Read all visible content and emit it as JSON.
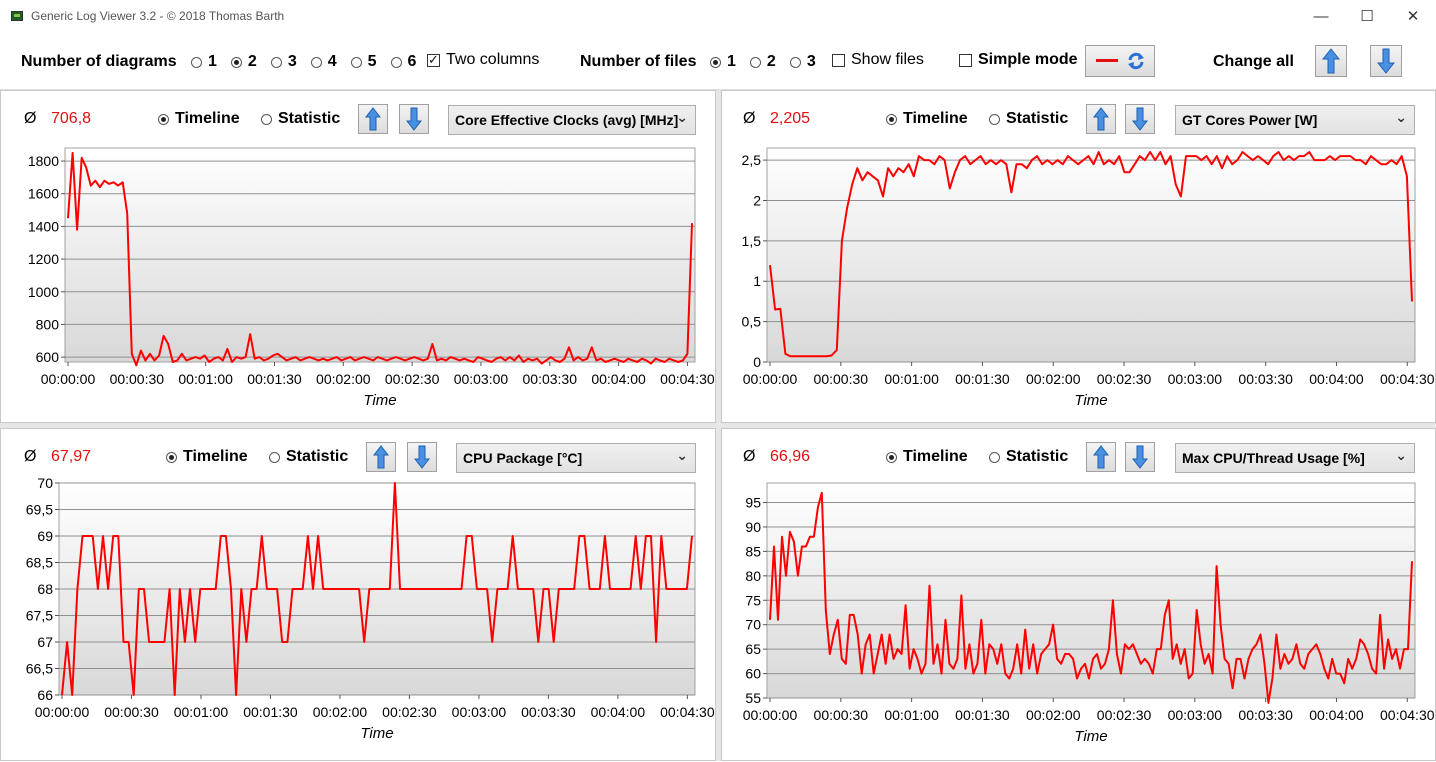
{
  "window": {
    "title": "Generic Log Viewer 3.2 - © 2018 Thomas Barth",
    "min": "—",
    "max": "☐",
    "close": "✕"
  },
  "toolbar": {
    "num_diagrams_label": "Number of diagrams",
    "diagram_options": [
      "1",
      "2",
      "3",
      "4",
      "5",
      "6"
    ],
    "diagram_selected": "2",
    "two_columns_label": "Two columns",
    "two_columns_checked": true,
    "num_files_label": "Number of files",
    "file_options": [
      "1",
      "2",
      "3"
    ],
    "file_selected": "1",
    "show_files_label": "Show files",
    "show_files_checked": false,
    "simple_mode_label": "Simple mode",
    "simple_mode_checked": false,
    "change_all_label": "Change all",
    "line_color": "#e01010"
  },
  "panels": [
    {
      "avg_symbol": "Ø",
      "avg_value": "706,8",
      "timeline_label": "Timeline",
      "statistic_label": "Statistic",
      "mode": "timeline",
      "sensor": "Core Effective Clocks (avg) [MHz]",
      "chart_data": {
        "type": "line",
        "xlabel": "Time",
        "x_ticks": [
          "00:00:00",
          "00:00:30",
          "00:01:00",
          "00:01:30",
          "00:02:00",
          "00:02:30",
          "00:03:00",
          "00:03:30",
          "00:04:00",
          "00:04:30"
        ],
        "x_range_seconds": [
          0,
          272
        ],
        "y_ticks": [
          "600",
          "800",
          "1000",
          "1200",
          "1400",
          "1600",
          "1800"
        ],
        "ylim": [
          570,
          1880
        ],
        "y_tick_values": [
          600,
          800,
          1000,
          1200,
          1400,
          1600,
          1800
        ],
        "series": [
          {
            "color": "#ff0000",
            "values": [
              1450,
              1850,
              1380,
              1820,
              1760,
              1650,
              1680,
              1640,
              1680,
              1660,
              1670,
              1650,
              1670,
              1480,
              620,
              550,
              640,
              580,
              620,
              580,
              610,
              730,
              680,
              570,
              580,
              620,
              580,
              590,
              600,
              590,
              610,
              570,
              590,
              600,
              580,
              650,
              570,
              600,
              590,
              600,
              740,
              590,
              600,
              580,
              590,
              610,
              620,
              600,
              580,
              590,
              600,
              580,
              590,
              600,
              590,
              580,
              590,
              580,
              590,
              600,
              580,
              590,
              600,
              580,
              590,
              600,
              590,
              580,
              600,
              590,
              580,
              590,
              600,
              590,
              580,
              590,
              600,
              590,
              580,
              590,
              680,
              580,
              590,
              580,
              600,
              590,
              580,
              590,
              580,
              570,
              600,
              590,
              580,
              570,
              590,
              600,
              580,
              600,
              580,
              610,
              570,
              590,
              580,
              590,
              560,
              580,
              600,
              580,
              570,
              590,
              660,
              580,
              600,
              580,
              590,
              660,
              580,
              590,
              570,
              580,
              590,
              580,
              570,
              590,
              580,
              570,
              590,
              580,
              560,
              590,
              580,
              570,
              590,
              580,
              570,
              580,
              620,
              1420
            ]
          }
        ]
      }
    },
    {
      "avg_symbol": "Ø",
      "avg_value": "2,205",
      "timeline_label": "Timeline",
      "statistic_label": "Statistic",
      "mode": "timeline",
      "sensor": "GT Cores Power [W]",
      "chart_data": {
        "type": "line",
        "xlabel": "Time",
        "x_ticks": [
          "00:00:00",
          "00:00:30",
          "00:01:00",
          "00:01:30",
          "00:02:00",
          "00:02:30",
          "00:03:00",
          "00:03:30",
          "00:04:00",
          "00:04:30"
        ],
        "x_range_seconds": [
          0,
          272
        ],
        "y_ticks": [
          "0",
          "0,5",
          "1",
          "1,5",
          "2",
          "2,5"
        ],
        "ylim": [
          0,
          2.65
        ],
        "y_tick_values": [
          0,
          0.5,
          1,
          1.5,
          2,
          2.5
        ],
        "series": [
          {
            "color": "#ff0000",
            "values": [
              1.2,
              0.65,
              0.66,
              0.1,
              0.07,
              0.07,
              0.07,
              0.07,
              0.07,
              0.07,
              0.07,
              0.07,
              0.08,
              0.15,
              1.5,
              1.9,
              2.2,
              2.4,
              2.25,
              2.35,
              2.3,
              2.25,
              2.05,
              2.4,
              2.3,
              2.4,
              2.35,
              2.45,
              2.3,
              2.55,
              2.5,
              2.5,
              2.45,
              2.55,
              2.5,
              2.15,
              2.35,
              2.5,
              2.55,
              2.45,
              2.5,
              2.55,
              2.45,
              2.5,
              2.45,
              2.5,
              2.45,
              2.1,
              2.45,
              2.45,
              2.4,
              2.5,
              2.55,
              2.45,
              2.5,
              2.45,
              2.5,
              2.45,
              2.55,
              2.5,
              2.45,
              2.5,
              2.55,
              2.45,
              2.6,
              2.45,
              2.5,
              2.45,
              2.55,
              2.35,
              2.35,
              2.45,
              2.55,
              2.5,
              2.6,
              2.5,
              2.6,
              2.45,
              2.55,
              2.2,
              2.05,
              2.55,
              2.55,
              2.55,
              2.5,
              2.55,
              2.45,
              2.55,
              2.4,
              2.55,
              2.45,
              2.5,
              2.6,
              2.55,
              2.5,
              2.55,
              2.5,
              2.45,
              2.55,
              2.6,
              2.5,
              2.55,
              2.5,
              2.55,
              2.55,
              2.6,
              2.5,
              2.5,
              2.5,
              2.55,
              2.5,
              2.55,
              2.55,
              2.55,
              2.5,
              2.5,
              2.45,
              2.55,
              2.5,
              2.45,
              2.45,
              2.5,
              2.45,
              2.55,
              2.3,
              0.75
            ]
          }
        ]
      }
    },
    {
      "avg_symbol": "Ø",
      "avg_value": "67,97",
      "timeline_label": "Timeline",
      "statistic_label": "Statistic",
      "mode": "timeline",
      "sensor": "CPU Package [°C]",
      "chart_data": {
        "type": "line",
        "xlabel": "Time",
        "x_ticks": [
          "00:00:00",
          "00:00:30",
          "00:01:00",
          "00:01:30",
          "00:02:00",
          "00:02:30",
          "00:03:00",
          "00:03:30",
          "00:04:00",
          "00:04:30"
        ],
        "x_range_seconds": [
          0,
          272
        ],
        "y_ticks": [
          "66",
          "66,5",
          "67",
          "67,5",
          "68",
          "68,5",
          "69",
          "69,5",
          "70"
        ],
        "ylim": [
          66,
          70
        ],
        "y_tick_values": [
          66,
          66.5,
          67,
          67.5,
          68,
          68.5,
          69,
          69.5,
          70
        ],
        "series": [
          {
            "color": "#ff0000",
            "values": [
              66,
              67,
              66,
              68,
              69,
              69,
              69,
              68,
              69,
              68,
              69,
              69,
              67,
              67,
              66,
              68,
              68,
              67,
              67,
              67,
              67,
              68,
              66,
              68,
              67,
              68,
              67,
              68,
              68,
              68,
              68,
              69,
              69,
              68,
              66,
              68,
              67,
              68,
              68,
              69,
              68,
              68,
              68,
              67,
              67,
              68,
              68,
              68,
              69,
              68,
              69,
              68,
              68,
              68,
              68,
              68,
              68,
              68,
              68,
              67,
              68,
              68,
              68,
              68,
              68,
              70,
              68,
              68,
              68,
              68,
              68,
              68,
              68,
              68,
              68,
              68,
              68,
              68,
              68,
              69,
              69,
              68,
              68,
              68,
              67,
              68,
              68,
              68,
              69,
              68,
              68,
              68,
              68,
              67,
              68,
              68,
              67,
              68,
              68,
              68,
              68,
              69,
              69,
              68,
              68,
              68,
              69,
              68,
              68,
              68,
              68,
              68,
              69,
              68,
              69,
              69,
              67,
              69,
              68,
              68,
              68,
              68,
              68,
              69
            ],
            "points_seconds": true
          }
        ]
      }
    },
    {
      "avg_symbol": "Ø",
      "avg_value": "66,96",
      "timeline_label": "Timeline",
      "statistic_label": "Statistic",
      "mode": "timeline",
      "sensor": "Max CPU/Thread Usage [%]",
      "chart_data": {
        "type": "line",
        "xlabel": "Time",
        "x_ticks": [
          "00:00:00",
          "00:00:30",
          "00:01:00",
          "00:01:30",
          "00:02:00",
          "00:02:30",
          "00:03:00",
          "00:03:30",
          "00:04:00",
          "00:04:30"
        ],
        "x_range_seconds": [
          0,
          272
        ],
        "y_ticks": [
          "55",
          "60",
          "65",
          "70",
          "75",
          "80",
          "85",
          "90",
          "95"
        ],
        "ylim": [
          55,
          99
        ],
        "y_tick_values": [
          55,
          60,
          65,
          70,
          75,
          80,
          85,
          90,
          95
        ],
        "series": [
          {
            "color": "#ff0000",
            "values": [
              71,
              86,
              71,
              88,
              80,
              89,
              87,
              80,
              86,
              86,
              88,
              88,
              94,
              97,
              73,
              64,
              68,
              71,
              63,
              62,
              72,
              72,
              68,
              60,
              66,
              68,
              60,
              64,
              68,
              62,
              68,
              63,
              65,
              64,
              74,
              61,
              65,
              63,
              60,
              62,
              78,
              62,
              66,
              60,
              71,
              62,
              61,
              63,
              76,
              61,
              66,
              60,
              62,
              71,
              60,
              66,
              65,
              62,
              66,
              60,
              59,
              61,
              66,
              60,
              69,
              61,
              66,
              60,
              64,
              65,
              66,
              70,
              63,
              62,
              64,
              64,
              63,
              59,
              61,
              62,
              59,
              63,
              64,
              61,
              62,
              65,
              75,
              64,
              60,
              66,
              65,
              66,
              64,
              62,
              63,
              62,
              60,
              65,
              65,
              72,
              75,
              63,
              66,
              62,
              65,
              59,
              60,
              73,
              66,
              62,
              64,
              60,
              82,
              70,
              63,
              62,
              57,
              63,
              63,
              59,
              63,
              65,
              66,
              68,
              62,
              54,
              59,
              68,
              61,
              64,
              62,
              63,
              66,
              62,
              61,
              64,
              65,
              66,
              64,
              61,
              59,
              63,
              60,
              60,
              58,
              63,
              61,
              63,
              67,
              66,
              64,
              61,
              60,
              72,
              61,
              67,
              63,
              65,
              61,
              65,
              65,
              83
            ]
          }
        ]
      }
    }
  ]
}
